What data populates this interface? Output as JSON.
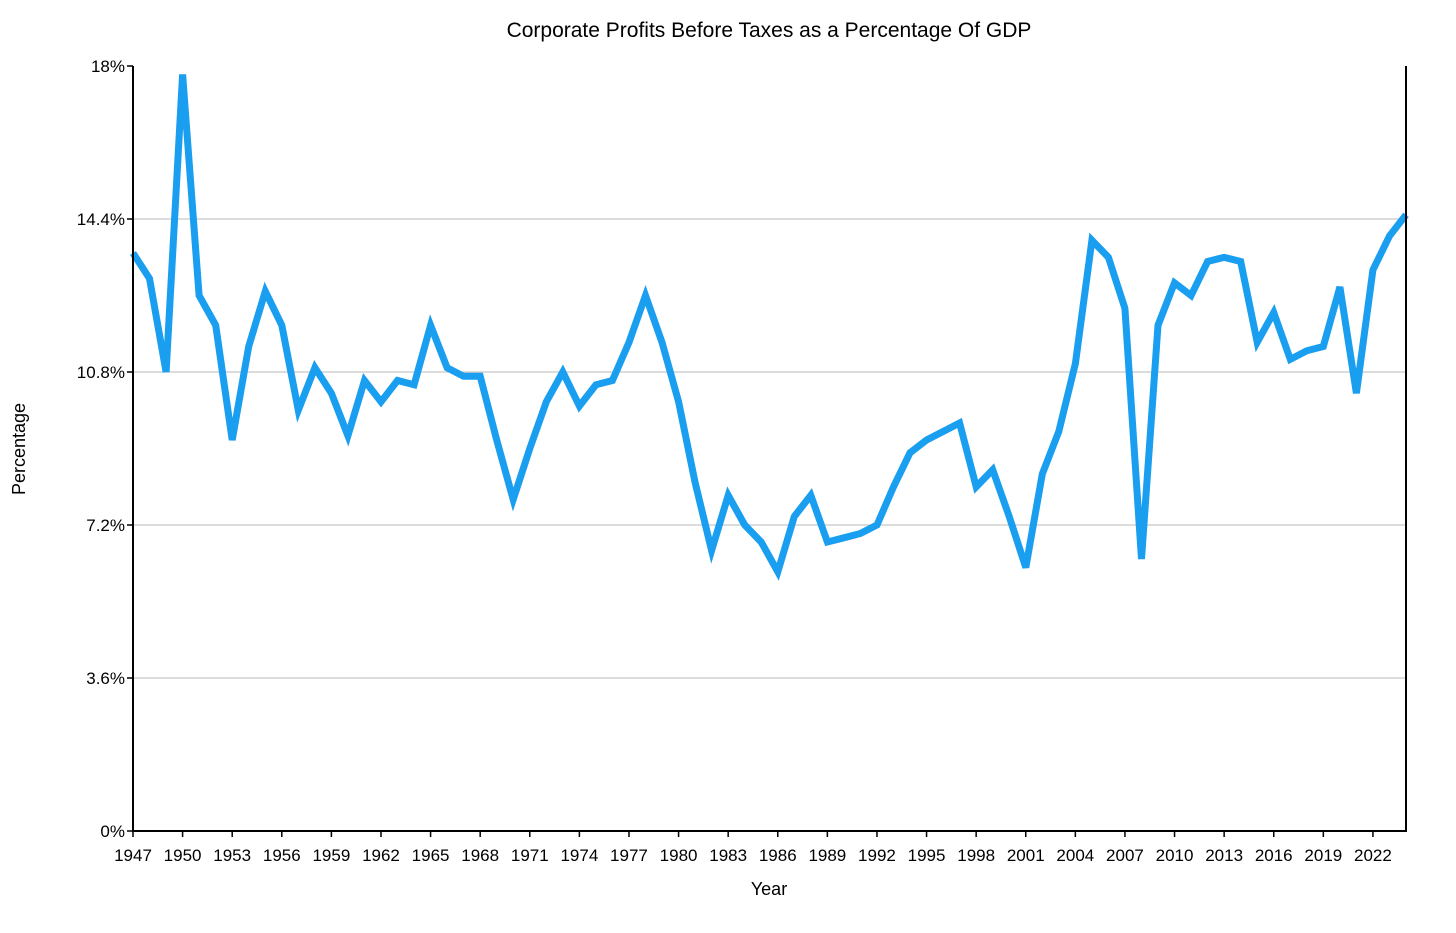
{
  "chart_data": {
    "type": "line",
    "title": "Corporate Profits Before Taxes as a Percentage Of GDP",
    "xlabel": "Year",
    "ylabel": "Percentage",
    "ylim": [
      0,
      18
    ],
    "xlim": [
      1947,
      2024
    ],
    "y_ticks": [
      "0%",
      "3.6%",
      "7.2%",
      "10.8%",
      "14.4%",
      "18%"
    ],
    "y_tick_values": [
      0,
      3.6,
      7.2,
      10.8,
      14.4,
      18
    ],
    "x_ticks": [
      1947,
      1950,
      1953,
      1956,
      1959,
      1962,
      1965,
      1968,
      1971,
      1974,
      1977,
      1980,
      1983,
      1986,
      1989,
      1992,
      1995,
      1998,
      2001,
      2004,
      2007,
      2010,
      2013,
      2016,
      2019,
      2022
    ],
    "grid": true,
    "legend": "none",
    "line_color": "#1a9ef0",
    "series": [
      {
        "x": [
          1947,
          1948,
          1949,
          1950,
          1951,
          1952,
          1953,
          1954,
          1955,
          1956,
          1957,
          1958,
          1959,
          1960,
          1961,
          1962,
          1963,
          1964,
          1965,
          1966,
          1967,
          1968,
          1969,
          1970,
          1971,
          1972,
          1973,
          1974,
          1975,
          1976,
          1977,
          1978,
          1979,
          1980,
          1981,
          1982,
          1983,
          1984,
          1985,
          1986,
          1987,
          1988,
          1989,
          1990,
          1991,
          1992,
          1993,
          1994,
          1995,
          1996,
          1997,
          1998,
          1999,
          2000,
          2001,
          2002,
          2003,
          2004,
          2005,
          2006,
          2007,
          2008,
          2009,
          2010,
          2011,
          2012,
          2013,
          2014,
          2015,
          2016,
          2017,
          2018,
          2019,
          2020,
          2021,
          2022,
          2023,
          2024
        ],
        "values": [
          13.6,
          13.0,
          10.8,
          17.8,
          12.6,
          11.9,
          9.2,
          11.4,
          12.7,
          11.9,
          9.9,
          10.9,
          10.3,
          9.3,
          10.6,
          10.1,
          10.6,
          10.5,
          11.9,
          10.9,
          10.7,
          10.7,
          9.2,
          7.8,
          9.0,
          10.1,
          10.8,
          10.0,
          10.5,
          10.6,
          11.5,
          12.6,
          11.5,
          10.1,
          8.2,
          6.6,
          7.9,
          7.2,
          6.8,
          6.1,
          7.4,
          7.9,
          6.8,
          6.9,
          7.0,
          7.2,
          8.1,
          8.9,
          9.2,
          9.4,
          9.6,
          8.1,
          8.5,
          7.4,
          6.2,
          8.4,
          9.4,
          11.0,
          13.9,
          13.5,
          12.3,
          6.4,
          11.9,
          12.9,
          12.6,
          13.4,
          13.5,
          13.4,
          11.5,
          12.2,
          11.1,
          11.3,
          11.4,
          12.8,
          10.3,
          13.2,
          14.0,
          14.5
        ]
      }
    ]
  }
}
